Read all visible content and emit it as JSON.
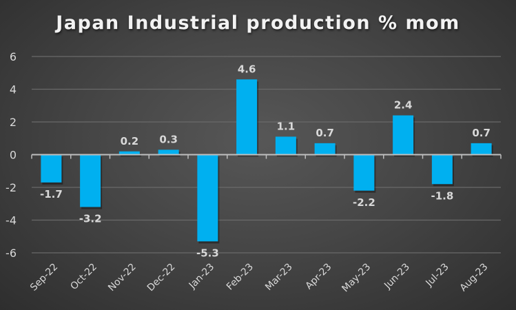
{
  "chart_data": {
    "type": "bar",
    "title": "Japan Industrial production % mom",
    "xlabel": "",
    "ylabel": "",
    "categories": [
      "Sep-22",
      "Oct-22",
      "Nov-22",
      "Dec-22",
      "Jan-23",
      "Feb-23",
      "Mar-23",
      "Apr-23",
      "May-23",
      "Jun-23",
      "Jul-23",
      "Aug-23"
    ],
    "values": [
      -1.7,
      -3.2,
      0.2,
      0.3,
      -5.3,
      4.6,
      1.1,
      0.7,
      -2.2,
      2.4,
      -1.8,
      0.7
    ],
    "data_labels": [
      "-1.7",
      "-3.2",
      "0.2",
      "0.3",
      "-5.3",
      "4.6",
      "1.1",
      "0.7",
      "-2.2",
      "2.4",
      "-1.8",
      "0.7"
    ],
    "ylim": [
      -6,
      6
    ],
    "yticks": [
      -6,
      -4,
      -2,
      0,
      2,
      4,
      6
    ],
    "ytick_labels": [
      "-6",
      "-4",
      "-2",
      "0",
      "2",
      "4",
      "6"
    ],
    "grid": true,
    "legend": "none",
    "colors": {
      "bar": "#00b0f0",
      "text": "#d9d9d9",
      "grid": "#6a6a6a",
      "axis": "#bfbfbf"
    }
  }
}
